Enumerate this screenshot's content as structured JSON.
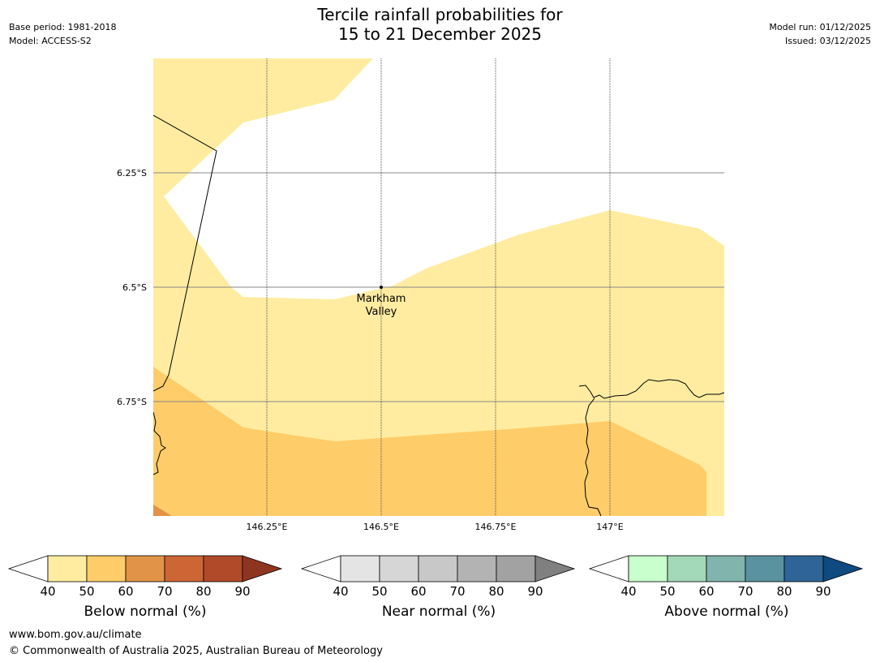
{
  "title": {
    "line1": "Tercile rainfall probabilities for",
    "line2": "15 to 21 December 2025"
  },
  "meta": {
    "base_period": "Base period: 1981-2018",
    "model": "Model: ACCESS-S2",
    "model_run": "Model run: 01/12/2025",
    "issued": "Issued: 03/12/2025"
  },
  "map": {
    "lat_labels": [
      "6.25°S",
      "6.5°S",
      "6.75°S"
    ],
    "lon_labels": [
      "146.25°E",
      "146.5°E",
      "146.75°E",
      "147°E"
    ],
    "place": {
      "name_line1": "Markham",
      "name_line2": "Valley"
    }
  },
  "legends": [
    {
      "label": "Below normal (%)",
      "ticks": [
        "40",
        "50",
        "60",
        "70",
        "80",
        "90"
      ],
      "colors": [
        "#ffeca0",
        "#fecc69",
        "#e19347",
        "#cc6634",
        "#b04a28",
        "#8e3521"
      ]
    },
    {
      "label": "Near normal (%)",
      "ticks": [
        "40",
        "50",
        "60",
        "70",
        "80",
        "90"
      ],
      "colors": [
        "#e4e4e4",
        "#d6d6d6",
        "#c8c8c8",
        "#b3b3b3",
        "#a2a2a2",
        "#808080"
      ]
    },
    {
      "label": "Above normal (%)",
      "ticks": [
        "40",
        "50",
        "60",
        "70",
        "80",
        "90"
      ],
      "colors": [
        "#c8ffcc",
        "#a3d8b8",
        "#80b4ad",
        "#5a92a0",
        "#2f6497",
        "#0f4a80"
      ]
    }
  ],
  "footer": {
    "url": "www.bom.gov.au/climate",
    "copyright": "© Commonwealth of Australia 2025, Australian Bureau of Meteorology"
  }
}
